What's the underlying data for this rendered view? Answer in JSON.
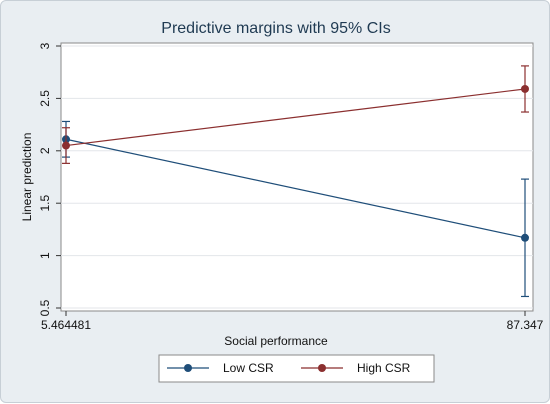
{
  "chart_data": {
    "type": "line",
    "title": "Predictive margins with 95% CIs",
    "xlabel": "Social performance",
    "ylabel": "Linear prediction",
    "x": [
      "5.464481",
      "87.347"
    ],
    "xticks": [
      "5.464481",
      "87.347"
    ],
    "yticks": [
      "0.5",
      "1",
      "1.5",
      "2",
      "2.5",
      "3"
    ],
    "ylim": [
      0.5,
      3.0
    ],
    "grid": true,
    "legend_position": "bottom",
    "series": [
      {
        "name": "Low CSR",
        "color": "#1f4e79",
        "values": [
          2.11,
          1.17
        ],
        "ci_low": [
          1.94,
          0.61
        ],
        "ci_high": [
          2.28,
          1.73
        ]
      },
      {
        "name": "High CSR",
        "color": "#8b2f2f",
        "values": [
          2.05,
          2.59
        ],
        "ci_low": [
          1.88,
          2.37
        ],
        "ci_high": [
          2.22,
          2.81
        ]
      }
    ]
  }
}
